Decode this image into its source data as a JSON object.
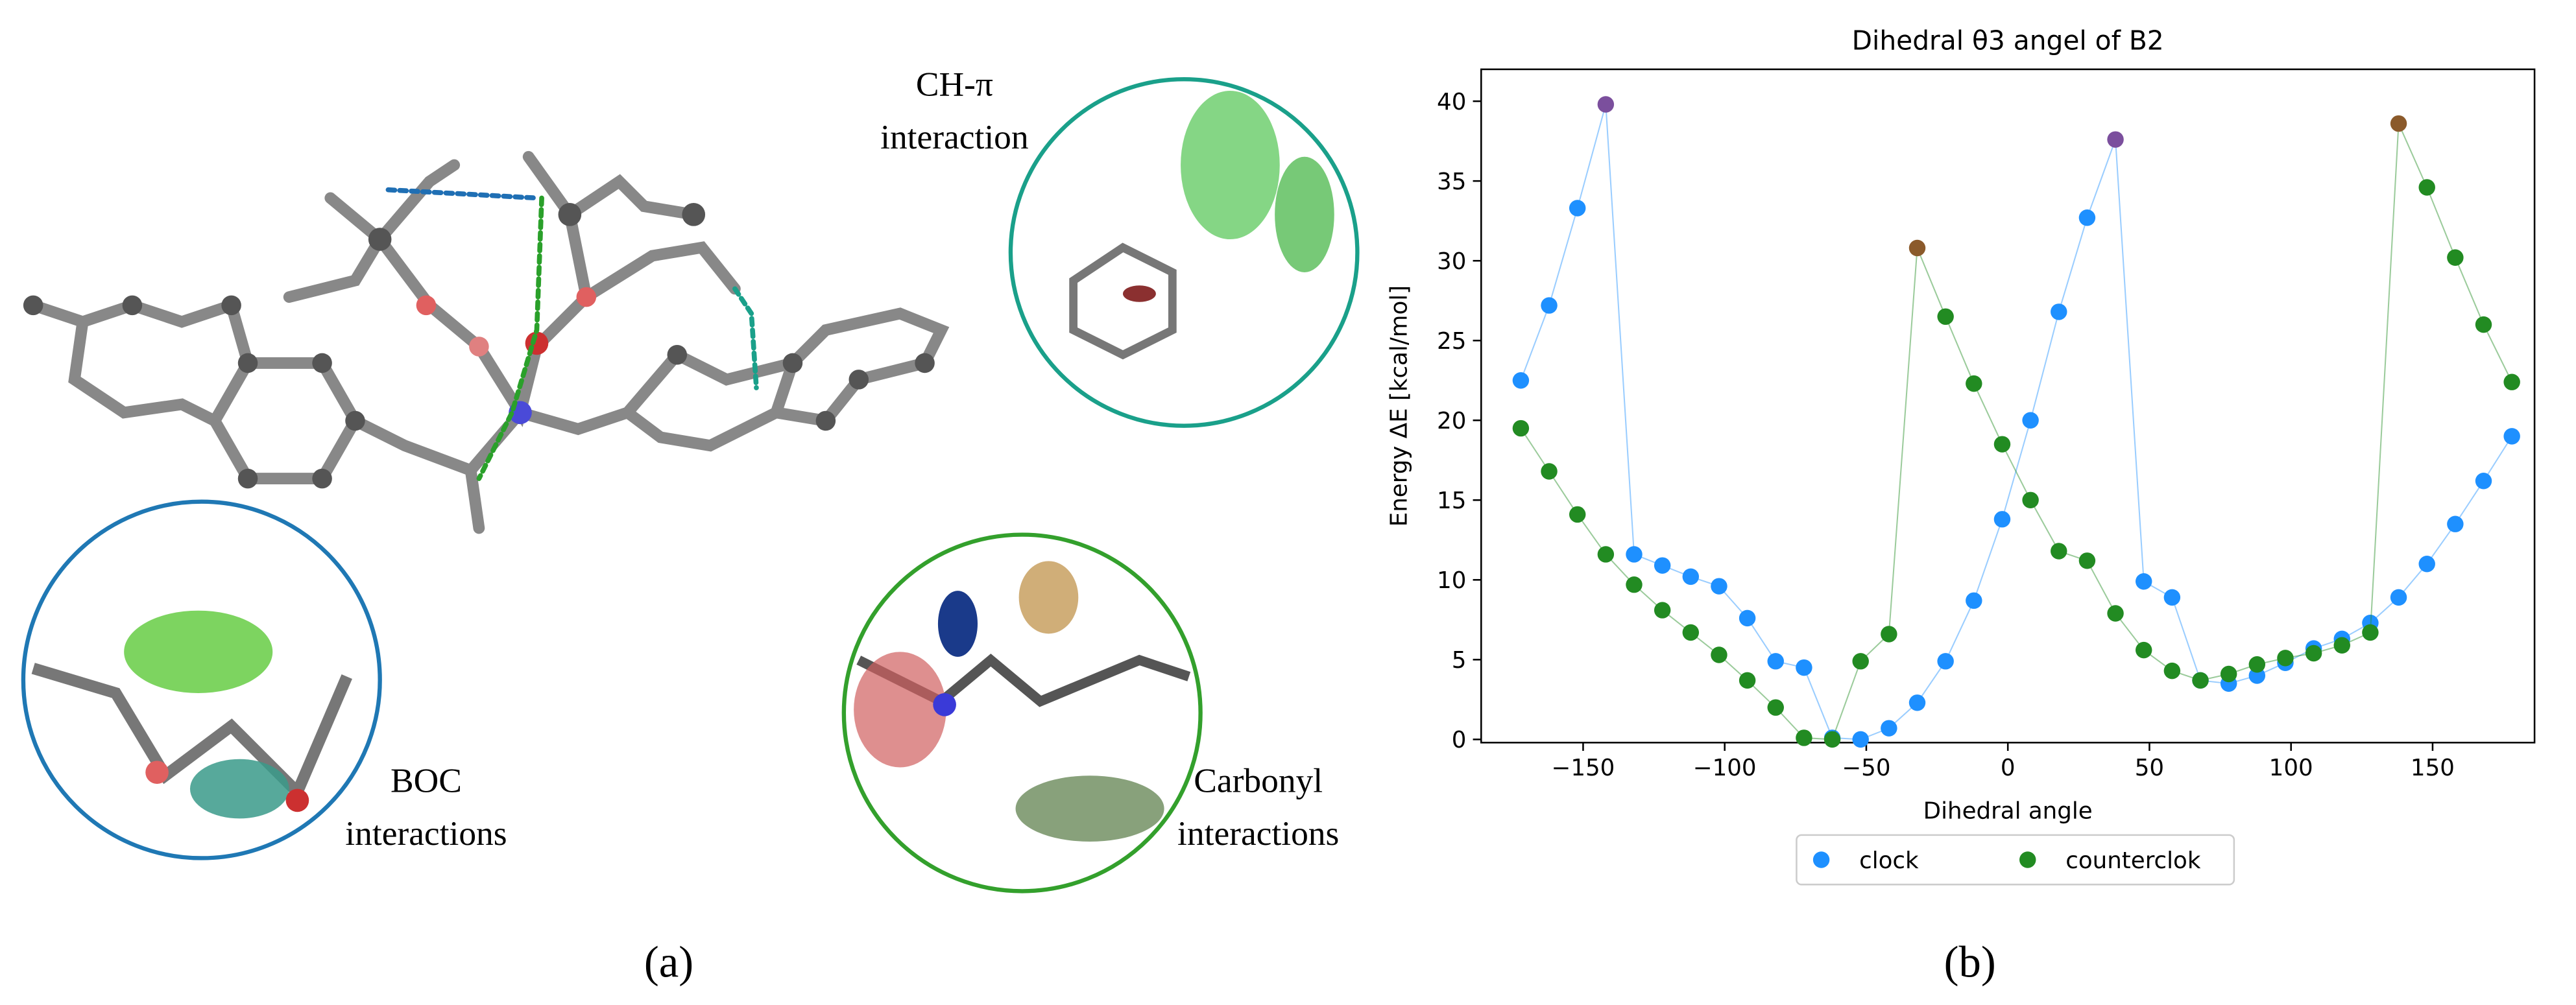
{
  "panel_a": {
    "annotations": [
      [
        "CH-π",
        "interaction"
      ],
      [
        "BOC",
        "interactions"
      ],
      [
        "Carbonyl",
        "interactions"
      ]
    ],
    "caption": "(a)"
  },
  "panel_b_caption": "(b)",
  "chart_data": {
    "type": "scatter",
    "title": "Dihedral θ3 angel of B2",
    "x_label": "Dihedral angle",
    "y_label": "Energy ΔE  [kcal/mol]",
    "x": [
      -172,
      -162,
      -152,
      -142,
      -132,
      -122,
      -112,
      -102,
      -92,
      -82,
      -72,
      -62,
      -52,
      -42,
      -32,
      -22,
      -12,
      -2,
      8,
      18,
      28,
      38,
      48,
      58,
      68,
      78,
      88,
      98,
      108,
      118,
      128,
      138,
      148,
      158,
      168,
      178
    ],
    "series": [
      {
        "name": "clock",
        "color": "#1e90ff",
        "values": [
          22.5,
          27.2,
          33.3,
          39.8,
          11.6,
          10.9,
          10.2,
          9.6,
          7.6,
          4.9,
          4.5,
          0.1,
          0.0,
          0.7,
          2.3,
          4.9,
          8.7,
          13.8,
          20.0,
          26.8,
          32.7,
          37.6,
          9.9,
          8.9,
          3.7,
          3.5,
          4.0,
          4.8,
          5.7,
          6.3,
          7.3,
          8.9,
          11.0,
          13.5,
          16.2,
          19.0
        ],
        "marker_colors": [
          "#1e90ff",
          "#1e90ff",
          "#1e90ff",
          "#7b4f9d",
          "#1e90ff",
          "#1e90ff",
          "#1e90ff",
          "#1e90ff",
          "#1e90ff",
          "#1e90ff",
          "#1e90ff",
          "#1e90ff",
          "#1e90ff",
          "#1e90ff",
          "#1e90ff",
          "#1e90ff",
          "#1e90ff",
          "#1e90ff",
          "#1e90ff",
          "#1e90ff",
          "#1e90ff",
          "#7b4f9d",
          "#1e90ff",
          "#1e90ff",
          "#1e90ff",
          "#1e90ff",
          "#1e90ff",
          "#1e90ff",
          "#1e90ff",
          "#1e90ff",
          "#1e90ff",
          "#1e90ff",
          "#1e90ff",
          "#1e90ff",
          "#1e90ff",
          "#1e90ff"
        ]
      },
      {
        "name": "counterclok",
        "color": "#228b22",
        "values": [
          19.5,
          16.8,
          14.1,
          11.6,
          9.7,
          8.1,
          6.7,
          5.3,
          3.7,
          2.0,
          0.1,
          0.0,
          4.9,
          6.6,
          30.8,
          26.5,
          22.3,
          18.5,
          15.0,
          11.8,
          11.2,
          7.9,
          5.6,
          4.3,
          3.7,
          4.1,
          4.7,
          5.1,
          5.4,
          5.9,
          6.7,
          38.6,
          34.6,
          30.2,
          26.0,
          22.4
        ],
        "marker_colors": [
          "#228b22",
          "#228b22",
          "#228b22",
          "#228b22",
          "#228b22",
          "#228b22",
          "#228b22",
          "#228b22",
          "#228b22",
          "#228b22",
          "#228b22",
          "#228b22",
          "#228b22",
          "#228b22",
          "#8b5a2b",
          "#228b22",
          "#228b22",
          "#228b22",
          "#228b22",
          "#228b22",
          "#228b22",
          "#228b22",
          "#228b22",
          "#228b22",
          "#228b22",
          "#228b22",
          "#228b22",
          "#228b22",
          "#228b22",
          "#228b22",
          "#228b22",
          "#8b5a2b",
          "#228b22",
          "#228b22",
          "#228b22",
          "#228b22"
        ]
      }
    ],
    "xlim": [
      -186,
      186
    ],
    "ylim": [
      -0.2,
      42
    ],
    "xticks": [
      {
        "value": -150,
        "label": "−150"
      },
      {
        "value": -100,
        "label": "−100"
      },
      {
        "value": -50,
        "label": "−50"
      },
      0,
      50,
      100,
      150
    ],
    "yticks": [
      0,
      5,
      10,
      15,
      20,
      25,
      30,
      35,
      40
    ],
    "grid": false,
    "legend": "lower center"
  }
}
